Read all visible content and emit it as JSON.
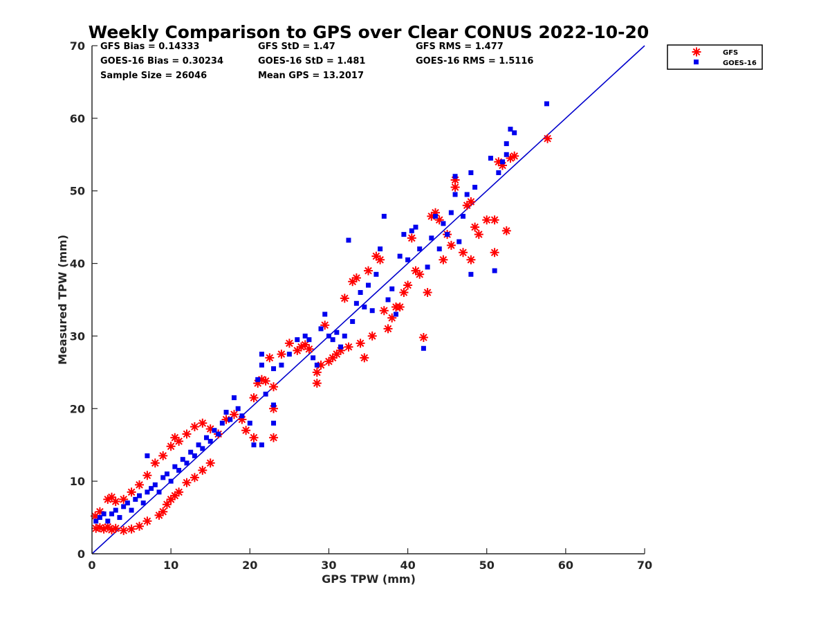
{
  "chart_data": {
    "type": "scatter",
    "title": "Weekly Comparison to GPS over Clear CONUS 2022-10-20",
    "xlabel": "GPS TPW (mm)",
    "ylabel": "Measured TPW (mm)",
    "xlim": [
      0,
      70
    ],
    "ylim": [
      0,
      70
    ],
    "xticks": [
      "0",
      "10",
      "20",
      "30",
      "40",
      "50",
      "60",
      "70"
    ],
    "yticks": [
      "0",
      "10",
      "20",
      "30",
      "40",
      "50",
      "60",
      "70"
    ],
    "legend_position": "outside-top-right",
    "stats": [
      {
        "label": "GFS Bias = 0.14333"
      },
      {
        "label": "GFS StD = 1.47"
      },
      {
        "label": "GFS RMS = 1.477"
      },
      {
        "label": "GOES-16 Bias = 0.30234"
      },
      {
        "label": "GOES-16 StD = 1.481"
      },
      {
        "label": "GOES-16 RMS = 1.5116"
      },
      {
        "label": "Sample Size = 26046"
      },
      {
        "label": "Mean GPS = 13.2017"
      }
    ],
    "reference_line": {
      "name": "1:1 line",
      "color": "#0000cc",
      "points": [
        [
          0,
          0
        ],
        [
          70,
          70
        ]
      ]
    },
    "series": [
      {
        "name": "GFS",
        "color": "#ff0000",
        "marker": "asterisk",
        "points": [
          [
            0.5,
            3.5
          ],
          [
            1.0,
            3.6
          ],
          [
            1.5,
            3.4
          ],
          [
            2.0,
            3.7
          ],
          [
            2.5,
            3.3
          ],
          [
            3.0,
            3.5
          ],
          [
            4.0,
            3.2
          ],
          [
            5.0,
            3.4
          ],
          [
            6.0,
            3.8
          ],
          [
            7.0,
            4.5
          ],
          [
            0.4,
            5.2
          ],
          [
            1.0,
            5.8
          ],
          [
            2.0,
            7.5
          ],
          [
            2.5,
            7.8
          ],
          [
            3.0,
            7.2
          ],
          [
            4.0,
            7.5
          ],
          [
            5.0,
            8.5
          ],
          [
            6.0,
            9.5
          ],
          [
            7.0,
            10.8
          ],
          [
            8.0,
            12.5
          ],
          [
            8.5,
            5.3
          ],
          [
            9.0,
            5.8
          ],
          [
            9.5,
            6.8
          ],
          [
            10.0,
            7.5
          ],
          [
            10.5,
            8.0
          ],
          [
            11.0,
            8.5
          ],
          [
            12.0,
            9.8
          ],
          [
            13.0,
            10.5
          ],
          [
            14.0,
            11.5
          ],
          [
            15.0,
            12.5
          ],
          [
            9.0,
            13.5
          ],
          [
            10.0,
            14.8
          ],
          [
            10.5,
            16.0
          ],
          [
            11.0,
            15.5
          ],
          [
            12.0,
            16.5
          ],
          [
            13.0,
            17.5
          ],
          [
            14.0,
            18.0
          ],
          [
            15.0,
            17.2
          ],
          [
            16.0,
            16.5
          ],
          [
            17.0,
            18.5
          ],
          [
            18.0,
            19.2
          ],
          [
            19.0,
            18.5
          ],
          [
            19.5,
            17.0
          ],
          [
            20.5,
            16.0
          ],
          [
            20.5,
            21.5
          ],
          [
            21.0,
            23.5
          ],
          [
            21.5,
            24.0
          ],
          [
            22.0,
            23.8
          ],
          [
            23.0,
            16.0
          ],
          [
            23.0,
            20.0
          ],
          [
            23.0,
            23.0
          ],
          [
            22.5,
            27.0
          ],
          [
            24.0,
            27.5
          ],
          [
            25.0,
            29.0
          ],
          [
            26.0,
            28.0
          ],
          [
            26.5,
            28.5
          ],
          [
            27.0,
            28.8
          ],
          [
            27.5,
            28.2
          ],
          [
            28.5,
            23.5
          ],
          [
            28.5,
            25.0
          ],
          [
            29.0,
            26.0
          ],
          [
            29.5,
            31.5
          ],
          [
            30.0,
            26.5
          ],
          [
            30.5,
            27.0
          ],
          [
            31.0,
            27.5
          ],
          [
            31.5,
            28.0
          ],
          [
            32.0,
            35.2
          ],
          [
            32.5,
            28.5
          ],
          [
            33.0,
            37.5
          ],
          [
            33.5,
            38.0
          ],
          [
            34.0,
            29.0
          ],
          [
            34.5,
            27.0
          ],
          [
            35.0,
            39.0
          ],
          [
            35.5,
            30.0
          ],
          [
            36.0,
            41.0
          ],
          [
            36.5,
            40.5
          ],
          [
            37.0,
            33.5
          ],
          [
            37.5,
            31.0
          ],
          [
            38.0,
            32.5
          ],
          [
            38.5,
            34.0
          ],
          [
            39.0,
            34.0
          ],
          [
            39.5,
            36.0
          ],
          [
            40.0,
            37.0
          ],
          [
            40.5,
            43.5
          ],
          [
            41.0,
            39.0
          ],
          [
            41.5,
            38.5
          ],
          [
            42.0,
            29.8
          ],
          [
            42.5,
            36.0
          ],
          [
            43.0,
            46.5
          ],
          [
            43.5,
            47.0
          ],
          [
            44.0,
            46.0
          ],
          [
            44.5,
            40.5
          ],
          [
            45.0,
            44.0
          ],
          [
            45.5,
            42.5
          ],
          [
            46.0,
            50.5
          ],
          [
            46.0,
            51.5
          ],
          [
            47.0,
            41.5
          ],
          [
            47.5,
            48.0
          ],
          [
            48.0,
            48.5
          ],
          [
            48.0,
            40.5
          ],
          [
            48.5,
            45.0
          ],
          [
            49.0,
            44.0
          ],
          [
            50.0,
            46.0
          ],
          [
            51.0,
            41.5
          ],
          [
            51.0,
            46.0
          ],
          [
            51.5,
            54.0
          ],
          [
            52.0,
            53.5
          ],
          [
            52.5,
            44.5
          ],
          [
            53.0,
            54.5
          ],
          [
            53.5,
            54.8
          ],
          [
            57.7,
            57.2
          ]
        ]
      },
      {
        "name": "GOES-16",
        "color": "#0000ee",
        "marker": "square",
        "points": [
          [
            0.5,
            4.5
          ],
          [
            1.0,
            5.0
          ],
          [
            1.5,
            5.5
          ],
          [
            2.0,
            4.5
          ],
          [
            2.5,
            5.5
          ],
          [
            3.0,
            6.0
          ],
          [
            3.5,
            5.0
          ],
          [
            4.0,
            6.5
          ],
          [
            4.5,
            7.0
          ],
          [
            5.0,
            6.0
          ],
          [
            5.5,
            7.5
          ],
          [
            6.0,
            8.0
          ],
          [
            6.5,
            7.0
          ],
          [
            7.0,
            8.5
          ],
          [
            7.0,
            13.5
          ],
          [
            7.5,
            9.0
          ],
          [
            8.0,
            9.5
          ],
          [
            8.5,
            8.5
          ],
          [
            9.0,
            10.5
          ],
          [
            9.5,
            11.0
          ],
          [
            10.0,
            10.0
          ],
          [
            10.5,
            12.0
          ],
          [
            11.0,
            11.5
          ],
          [
            11.5,
            13.0
          ],
          [
            12.0,
            12.5
          ],
          [
            12.5,
            14.0
          ],
          [
            13.0,
            13.5
          ],
          [
            13.5,
            15.0
          ],
          [
            14.0,
            14.5
          ],
          [
            14.5,
            16.0
          ],
          [
            15.0,
            15.5
          ],
          [
            15.5,
            17.0
          ],
          [
            16.0,
            16.5
          ],
          [
            16.5,
            18.0
          ],
          [
            17.0,
            19.5
          ],
          [
            17.5,
            18.5
          ],
          [
            18.0,
            21.5
          ],
          [
            18.5,
            20.0
          ],
          [
            19.0,
            19.0
          ],
          [
            20.0,
            18.0
          ],
          [
            20.5,
            15.0
          ],
          [
            21.5,
            15.0
          ],
          [
            21.0,
            24.0
          ],
          [
            21.5,
            26.0
          ],
          [
            21.5,
            27.5
          ],
          [
            22.0,
            22.0
          ],
          [
            23.0,
            18.0
          ],
          [
            23.0,
            20.5
          ],
          [
            23.0,
            25.5
          ],
          [
            24.0,
            26.0
          ],
          [
            25.0,
            27.5
          ],
          [
            26.0,
            29.5
          ],
          [
            27.0,
            30.0
          ],
          [
            27.5,
            29.5
          ],
          [
            28.0,
            27.0
          ],
          [
            28.5,
            26.0
          ],
          [
            29.0,
            31.0
          ],
          [
            29.5,
            33.0
          ],
          [
            30.0,
            30.0
          ],
          [
            30.5,
            29.5
          ],
          [
            31.0,
            30.5
          ],
          [
            31.5,
            28.5
          ],
          [
            32.0,
            30.0
          ],
          [
            32.5,
            43.2
          ],
          [
            33.0,
            32.0
          ],
          [
            33.5,
            34.5
          ],
          [
            34.0,
            36.0
          ],
          [
            34.5,
            34.0
          ],
          [
            35.0,
            37.0
          ],
          [
            35.5,
            33.5
          ],
          [
            36.0,
            38.5
          ],
          [
            36.5,
            42.0
          ],
          [
            37.0,
            46.5
          ],
          [
            37.5,
            35.0
          ],
          [
            38.0,
            36.5
          ],
          [
            38.5,
            33.0
          ],
          [
            39.0,
            41.0
          ],
          [
            39.5,
            44.0
          ],
          [
            40.0,
            40.5
          ],
          [
            40.5,
            44.5
          ],
          [
            41.0,
            45.0
          ],
          [
            41.5,
            42.0
          ],
          [
            42.0,
            28.3
          ],
          [
            42.5,
            39.5
          ],
          [
            43.0,
            43.5
          ],
          [
            43.5,
            46.5
          ],
          [
            44.0,
            42.0
          ],
          [
            44.5,
            45.5
          ],
          [
            45.0,
            44.0
          ],
          [
            45.5,
            47.0
          ],
          [
            46.0,
            52.0
          ],
          [
            46.0,
            49.5
          ],
          [
            46.5,
            43.0
          ],
          [
            47.0,
            46.5
          ],
          [
            47.5,
            49.5
          ],
          [
            48.0,
            52.5
          ],
          [
            48.0,
            38.5
          ],
          [
            48.5,
            50.5
          ],
          [
            50.5,
            54.5
          ],
          [
            51.0,
            39.0
          ],
          [
            51.5,
            52.5
          ],
          [
            52.0,
            54.0
          ],
          [
            52.5,
            55.0
          ],
          [
            53.0,
            58.5
          ],
          [
            53.5,
            58.0
          ],
          [
            52.5,
            56.5
          ],
          [
            57.6,
            62.0
          ]
        ]
      }
    ]
  }
}
